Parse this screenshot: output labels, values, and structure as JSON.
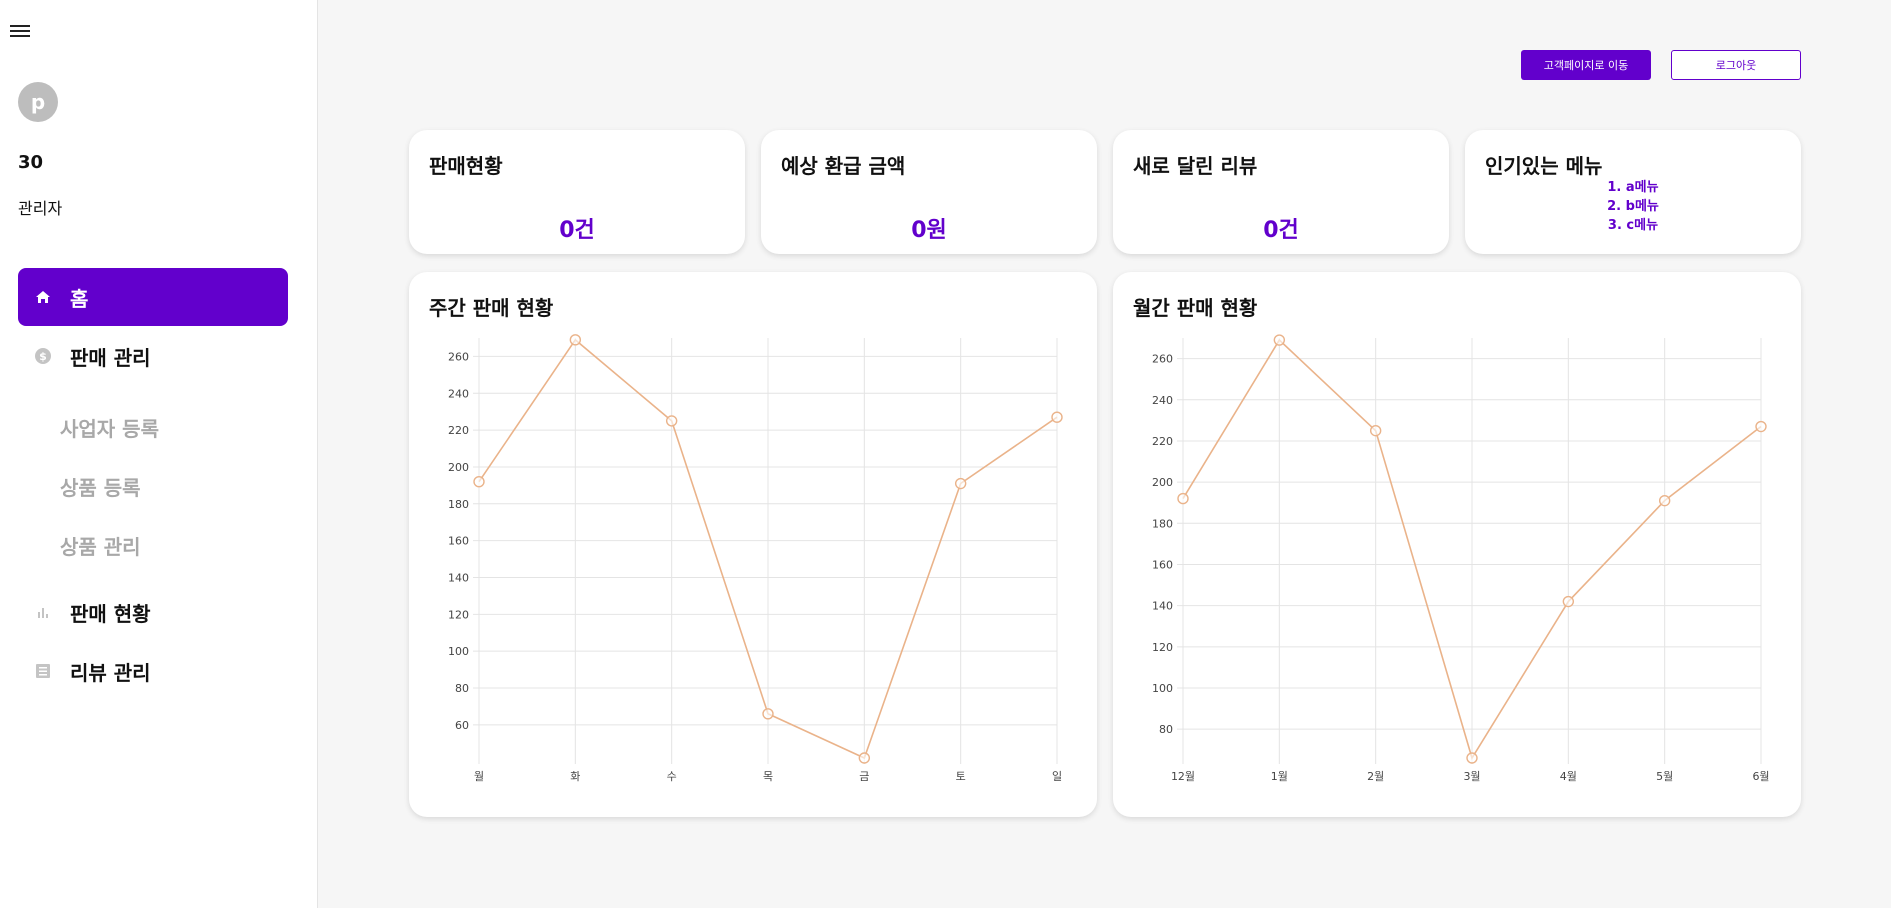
{
  "sidebar": {
    "avatar_letter": "p",
    "user_number": "30",
    "user_role": "관리자",
    "items": [
      {
        "label": "홈",
        "icon": "home-icon"
      },
      {
        "label": "판매 관리",
        "icon": "dollar-icon"
      },
      {
        "label": "사업자 등록"
      },
      {
        "label": "상품 등록"
      },
      {
        "label": "상품 관리"
      },
      {
        "label": "판매 현황",
        "icon": "bar-chart-icon"
      },
      {
        "label": "리뷰 관리",
        "icon": "list-icon"
      }
    ]
  },
  "header": {
    "customer_page_button": "고객페이지로 이동",
    "logout_button": "로그아웃"
  },
  "stats": {
    "sales": {
      "title": "판매현황",
      "value": "0건"
    },
    "refund": {
      "title": "예상 환급 금액",
      "value": "0원"
    },
    "reviews": {
      "title": "새로 달린 리뷰",
      "value": "0건"
    },
    "popular": {
      "title": "인기있는 메뉴",
      "items": [
        "1. a메뉴",
        "2. b메뉴",
        "3. c메뉴"
      ]
    }
  },
  "colors": {
    "accent": "#6200cc",
    "line": "#eab38a"
  },
  "chart_data": [
    {
      "type": "line",
      "title": "주간 판매 현황",
      "categories": [
        "월",
        "화",
        "수",
        "목",
        "금",
        "토",
        "일"
      ],
      "values": [
        192,
        269,
        225,
        66,
        42,
        191,
        227
      ],
      "yticks": [
        60,
        80,
        100,
        120,
        140,
        160,
        180,
        200,
        220,
        240,
        260
      ],
      "ylim": [
        42,
        270
      ],
      "grid": true
    },
    {
      "type": "line",
      "title": "월간 판매 현황",
      "categories": [
        "12월",
        "1월",
        "2월",
        "3월",
        "4월",
        "5월",
        "6월"
      ],
      "values": [
        192,
        269,
        225,
        66,
        142,
        191,
        227
      ],
      "yticks": [
        80,
        100,
        120,
        140,
        160,
        180,
        200,
        220,
        240,
        260
      ],
      "ylim": [
        66,
        270
      ],
      "grid": true
    }
  ]
}
